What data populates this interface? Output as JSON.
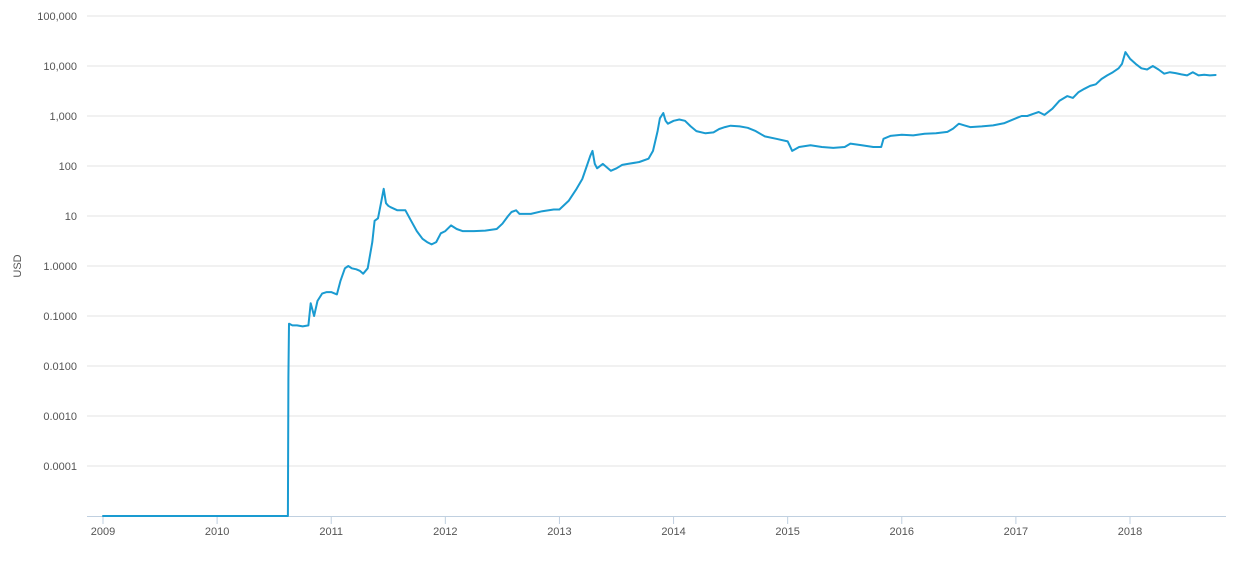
{
  "chart_data": {
    "type": "line",
    "title": "",
    "xlabel": "",
    "ylabel": "USD",
    "yscale": "log",
    "ylim": [
      1e-05,
      100000
    ],
    "xlim": [
      2009.0,
      2018.85
    ],
    "grid": true,
    "legend": "none",
    "x_ticks": [
      "2009",
      "2010",
      "2011",
      "2012",
      "2013",
      "2014",
      "2015",
      "2016",
      "2017",
      "2018"
    ],
    "y_ticks": [
      {
        "value": 0.0001,
        "label": "0.0001"
      },
      {
        "value": 0.001,
        "label": "0.0010"
      },
      {
        "value": 0.01,
        "label": "0.0100"
      },
      {
        "value": 0.1,
        "label": "0.1000"
      },
      {
        "value": 1,
        "label": "1.0000"
      },
      {
        "value": 10,
        "label": "10"
      },
      {
        "value": 100,
        "label": "100"
      },
      {
        "value": 1000,
        "label": "1,000"
      },
      {
        "value": 10000,
        "label": "10,000"
      },
      {
        "value": 100000,
        "label": "100,000"
      }
    ],
    "series": [
      {
        "color": "#1a9bd1",
        "x": [
          2009.0,
          2010.62,
          2010.625,
          2010.63,
          2010.66,
          2010.7,
          2010.75,
          2010.8,
          2010.82,
          2010.85,
          2010.88,
          2010.92,
          2010.96,
          2011.0,
          2011.05,
          2011.08,
          2011.12,
          2011.15,
          2011.18,
          2011.22,
          2011.25,
          2011.28,
          2011.32,
          2011.36,
          2011.38,
          2011.41,
          2011.44,
          2011.46,
          2011.48,
          2011.5,
          2011.52,
          2011.58,
          2011.65,
          2011.7,
          2011.75,
          2011.8,
          2011.84,
          2011.88,
          2011.92,
          2011.96,
          2012.0,
          2012.05,
          2012.1,
          2012.15,
          2012.25,
          2012.35,
          2012.45,
          2012.5,
          2012.55,
          2012.58,
          2012.62,
          2012.65,
          2012.75,
          2012.85,
          2012.95,
          2013.0,
          2013.08,
          2013.15,
          2013.2,
          2013.24,
          2013.27,
          2013.29,
          2013.31,
          2013.33,
          2013.38,
          2013.45,
          2013.5,
          2013.55,
          2013.6,
          2013.7,
          2013.78,
          2013.82,
          2013.86,
          2013.88,
          2013.91,
          2013.93,
          2013.95,
          2014.0,
          2014.05,
          2014.1,
          2014.15,
          2014.2,
          2014.28,
          2014.35,
          2014.4,
          2014.45,
          2014.5,
          2014.58,
          2014.65,
          2014.72,
          2014.8,
          2014.9,
          2015.0,
          2015.04,
          2015.1,
          2015.2,
          2015.3,
          2015.4,
          2015.5,
          2015.55,
          2015.65,
          2015.75,
          2015.82,
          2015.84,
          2015.9,
          2016.0,
          2016.1,
          2016.2,
          2016.3,
          2016.4,
          2016.45,
          2016.5,
          2016.55,
          2016.6,
          2016.7,
          2016.8,
          2016.9,
          2017.0,
          2017.05,
          2017.1,
          2017.15,
          2017.2,
          2017.25,
          2017.32,
          2017.38,
          2017.45,
          2017.5,
          2017.55,
          2017.6,
          2017.65,
          2017.7,
          2017.75,
          2017.8,
          2017.85,
          2017.9,
          2017.93,
          2017.96,
          2018.0,
          2018.05,
          2018.1,
          2018.15,
          2018.2,
          2018.25,
          2018.3,
          2018.35,
          2018.4,
          2018.45,
          2018.5,
          2018.55,
          2018.6,
          2018.65,
          2018.7,
          2018.75
        ],
        "y": [
          1e-05,
          1e-05,
          0.006,
          0.07,
          0.065,
          0.065,
          0.062,
          0.065,
          0.18,
          0.1,
          0.2,
          0.28,
          0.3,
          0.3,
          0.27,
          0.5,
          0.9,
          1.0,
          0.9,
          0.86,
          0.8,
          0.7,
          0.9,
          3,
          8,
          9,
          20,
          35,
          18,
          16,
          15,
          13,
          13,
          8,
          5,
          3.5,
          3,
          2.7,
          3.0,
          4.5,
          5,
          6.5,
          5.5,
          5,
          5,
          5.1,
          5.5,
          7,
          10,
          12,
          13,
          11,
          11,
          12.5,
          13.5,
          13.5,
          20,
          35,
          55,
          100,
          160,
          200,
          110,
          90,
          110,
          80,
          90,
          105,
          110,
          120,
          140,
          200,
          500,
          900,
          1150,
          800,
          700,
          800,
          850,
          800,
          620,
          500,
          450,
          470,
          550,
          600,
          640,
          620,
          580,
          500,
          390,
          350,
          310,
          200,
          240,
          260,
          240,
          230,
          240,
          280,
          260,
          240,
          240,
          350,
          400,
          420,
          410,
          440,
          450,
          480,
          560,
          700,
          650,
          600,
          620,
          650,
          720,
          900,
          1000,
          1000,
          1100,
          1200,
          1050,
          1400,
          2000,
          2500,
          2300,
          3000,
          3500,
          4000,
          4300,
          5500,
          6500,
          7500,
          9000,
          11000,
          19000,
          14000,
          11000,
          9000,
          8500,
          10000,
          8500,
          7000,
          7500,
          7200,
          6800,
          6500,
          7500,
          6500,
          6700,
          6500,
          6600
        ]
      }
    ]
  }
}
